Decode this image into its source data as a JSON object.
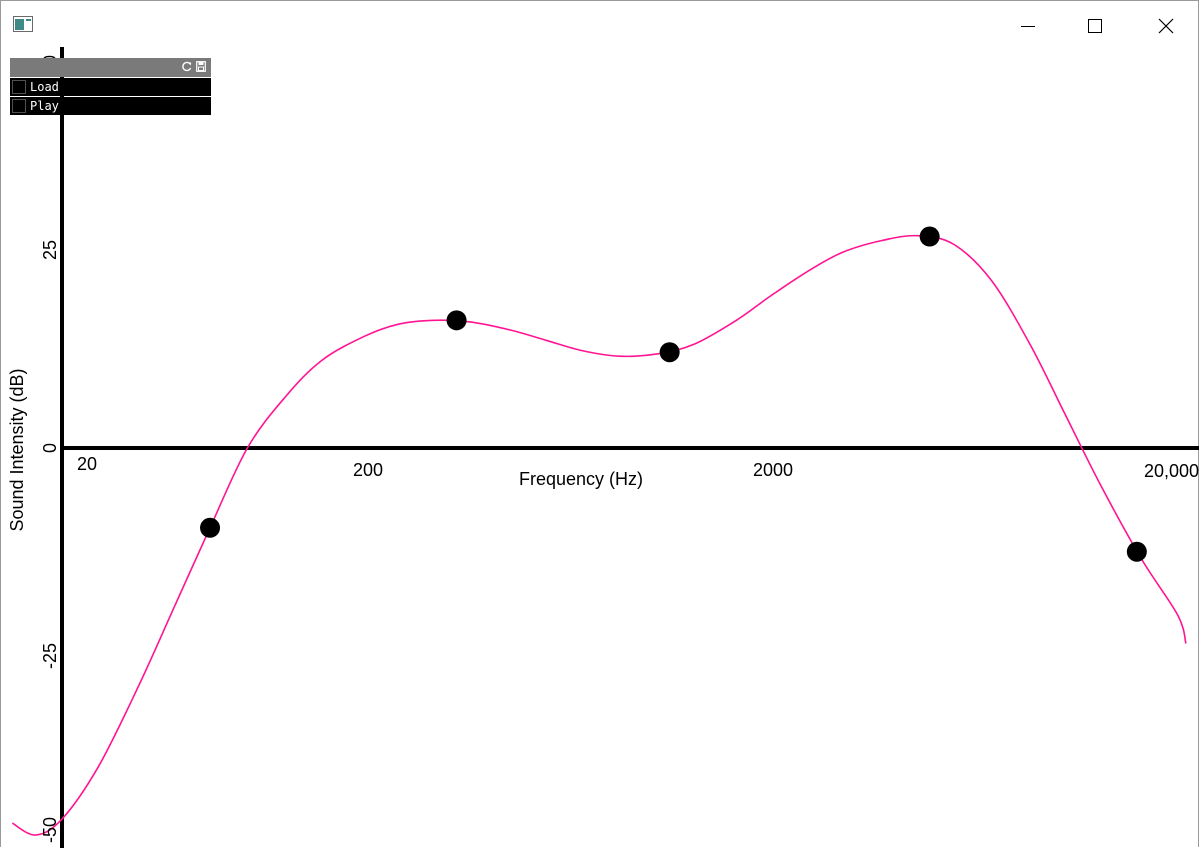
{
  "window": {
    "app_icon": "window-app-icon",
    "minimize_icon": "minimize-icon",
    "maximize_icon": "maximize-icon",
    "close_icon": "close-icon"
  },
  "gui_panel": {
    "header_icons": [
      "refresh-icon",
      "save-icon"
    ],
    "items": [
      {
        "label": "Load",
        "checked": false
      },
      {
        "label": "Play",
        "checked": false
      }
    ]
  },
  "chart_data": {
    "type": "line",
    "xlabel": "Frequency (Hz)",
    "ylabel": "Sound Intensity (dB)",
    "x_scale": "log",
    "xlim": [
      20,
      20000
    ],
    "ylim": [
      -50,
      50
    ],
    "x_ticks": [
      "20",
      "200",
      "2000",
      "20,000"
    ],
    "y_ticks": [
      "50",
      "25",
      "0",
      "-25",
      "-50"
    ],
    "curve_color": "#ff1493",
    "point_color": "#000000",
    "points": [
      {
        "x": 50,
        "y": -10
      },
      {
        "x": 230,
        "y": 16
      },
      {
        "x": 860,
        "y": 12
      },
      {
        "x": 4300,
        "y": 26.5
      },
      {
        "x": 15500,
        "y": -13
      }
    ],
    "curve": [
      {
        "x": 14.7,
        "y": -47
      },
      {
        "x": 17,
        "y": -48.5
      },
      {
        "x": 20,
        "y": -46.5
      },
      {
        "x": 25,
        "y": -40
      },
      {
        "x": 32,
        "y": -30
      },
      {
        "x": 40,
        "y": -20
      },
      {
        "x": 50,
        "y": -10
      },
      {
        "x": 63,
        "y": 0
      },
      {
        "x": 80,
        "y": 6.5
      },
      {
        "x": 100,
        "y": 11
      },
      {
        "x": 130,
        "y": 14
      },
      {
        "x": 160,
        "y": 15.5
      },
      {
        "x": 200,
        "y": 16
      },
      {
        "x": 250,
        "y": 15.8
      },
      {
        "x": 320,
        "y": 14.8
      },
      {
        "x": 400,
        "y": 13.5
      },
      {
        "x": 500,
        "y": 12.2
      },
      {
        "x": 630,
        "y": 11.5
      },
      {
        "x": 800,
        "y": 11.8
      },
      {
        "x": 1000,
        "y": 13
      },
      {
        "x": 1300,
        "y": 16
      },
      {
        "x": 1600,
        "y": 19
      },
      {
        "x": 2000,
        "y": 22
      },
      {
        "x": 2500,
        "y": 24.5
      },
      {
        "x": 3200,
        "y": 26
      },
      {
        "x": 4000,
        "y": 26.6
      },
      {
        "x": 5000,
        "y": 25.5
      },
      {
        "x": 6300,
        "y": 21
      },
      {
        "x": 8000,
        "y": 13
      },
      {
        "x": 10000,
        "y": 4
      },
      {
        "x": 12500,
        "y": -5
      },
      {
        "x": 16000,
        "y": -14
      },
      {
        "x": 20000,
        "y": -21
      },
      {
        "x": 21000,
        "y": -24.5
      }
    ]
  }
}
